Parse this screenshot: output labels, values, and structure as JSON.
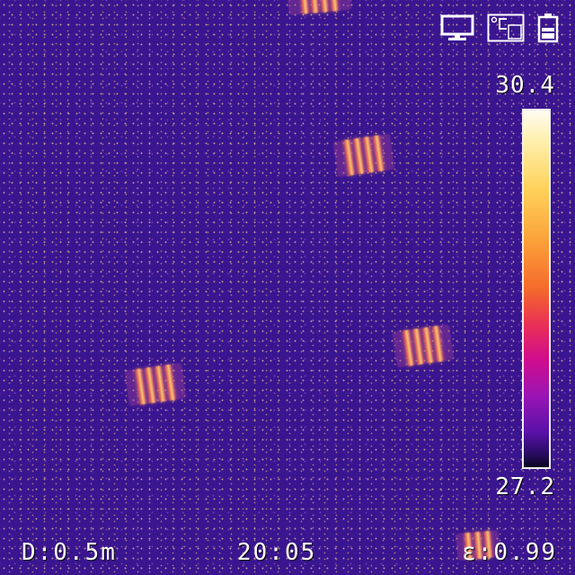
{
  "status_bar": {
    "icons": [
      "monitor-icon",
      "temperature-unit-icon",
      "battery-icon"
    ]
  },
  "temperature_scale": {
    "max": "30.4",
    "min": "27.2",
    "palette": "ironbow",
    "colors": {
      "hot": "#fffbf2",
      "warm": "#fca33a",
      "mid": "#d00c8e",
      "cool": "#5a12a8",
      "cold": "#0a0420"
    }
  },
  "thermal_view": {
    "background_color": "#3a1590",
    "hotspot_color": "#f4a35a"
  },
  "footer": {
    "distance": "D:0.5m",
    "time": "20:05",
    "emissivity": "ε:0.99"
  }
}
